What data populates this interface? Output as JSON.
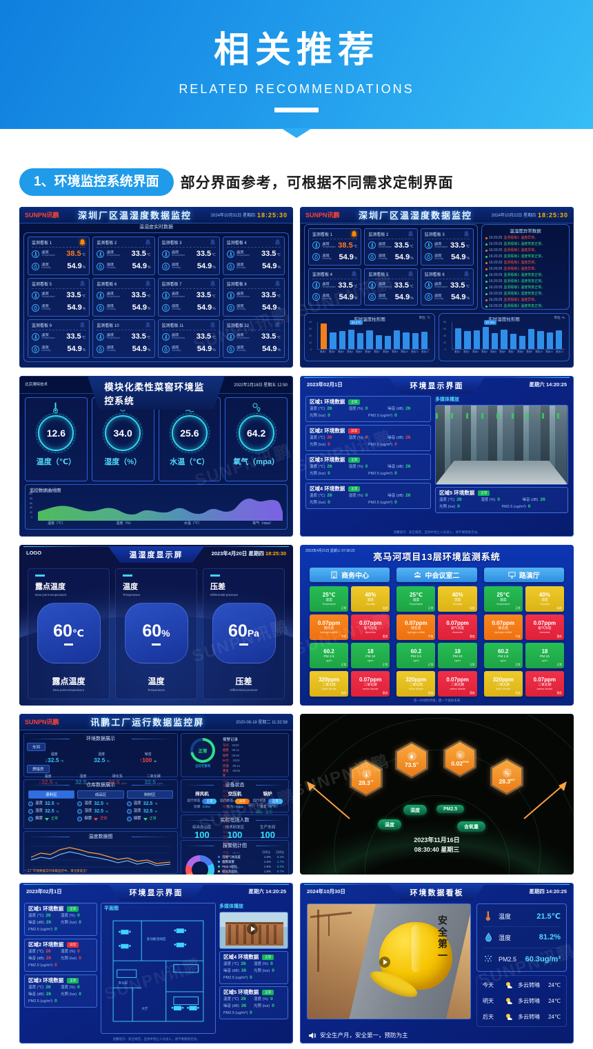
{
  "banner": {
    "title": "相关推荐",
    "subtitle": "RELATED RECOMMENDATIONS"
  },
  "section": {
    "label": "1、环境监控系统界面",
    "desc": "部分界面参考，可根据不同需求定制界面"
  },
  "watermark": "SUNPN讯鹏",
  "d1": {
    "logo": "SUNPN讯鹏",
    "title": "深圳厂区温湿度数据监控",
    "date": "2024年10月31日 星期四",
    "time": "18:25:30",
    "subtitle": "温湿度实时数据",
    "temp_label": "温度",
    "temp_en": "Temperature",
    "hum_label": "湿度",
    "hum_en": "Humidity",
    "temp_unit": "℃",
    "hum_unit": "%",
    "boards": [
      {
        "n": "监测看板 1",
        "t": "38.5",
        "h": "54.9",
        "cls": "alarm"
      },
      {
        "n": "监测看板 2",
        "t": "33.5",
        "h": "54.9"
      },
      {
        "n": "监测看板 3",
        "t": "33.5",
        "h": "54.9"
      },
      {
        "n": "监测看板 4",
        "t": "33.5",
        "h": "54.9"
      },
      {
        "n": "监测看板 5",
        "t": "33.5",
        "h": "54.9"
      },
      {
        "n": "监测看板 6",
        "t": "33.5",
        "h": "54.9"
      },
      {
        "n": "监测看板 7",
        "t": "33.5",
        "h": "54.9"
      },
      {
        "n": "监测看板 8",
        "t": "33.5",
        "h": "54.9"
      },
      {
        "n": "监测看板 9",
        "t": "33.5",
        "h": "54.9"
      },
      {
        "n": "监测看板 10",
        "t": "33.5",
        "h": "54.9"
      },
      {
        "n": "监测看板 11",
        "t": "33.5",
        "h": "54.9"
      },
      {
        "n": "监测看板 12",
        "t": "33.5",
        "h": "54.9"
      }
    ]
  },
  "d2": {
    "logo": "SUNPN讯鹏",
    "title": "深圳厂区温湿度数据监控",
    "date": "2024年10月22日 星期四",
    "time": "18:25:30",
    "subtitle": "温湿度实时数据",
    "alarm_title": "温湿度异常数据",
    "boards": [
      {
        "n": "监测看板 1",
        "t": "38.5",
        "h": "54.9",
        "cls": "alarm"
      },
      {
        "n": "监测看板 2",
        "t": "33.5",
        "h": "54.9"
      },
      {
        "n": "监测看板 3",
        "t": "33.5",
        "h": "54.9"
      },
      {
        "n": "监测看板 4",
        "t": "33.5",
        "h": "54.9"
      },
      {
        "n": "监测看板 5",
        "t": "33.5",
        "h": "54.9"
      },
      {
        "n": "监测看板 6",
        "t": "33.5",
        "h": "54.9"
      }
    ],
    "alarms": [
      {
        "time": "16:20:25",
        "src": "监测看板1",
        "msg": "温度异常。",
        "cls": "bad"
      },
      {
        "time": "16:20:25",
        "src": "监测看板1",
        "msg": "温度恢复正常。",
        "cls": "ok"
      },
      {
        "time": "16:20:25",
        "src": "监测看板1",
        "msg": "温度异常。",
        "cls": "bad"
      },
      {
        "time": "16:20:25",
        "src": "监测看板1",
        "msg": "湿度恢复正常。",
        "cls": "ok"
      },
      {
        "time": "16:20:25",
        "src": "监测看板1",
        "msg": "温度异常。",
        "cls": "bad"
      },
      {
        "time": "16:20:25",
        "src": "监测看板1",
        "msg": "温度异常。",
        "cls": "bad"
      },
      {
        "time": "16:20:25",
        "src": "监测看板1",
        "msg": "温度恢复正常。",
        "cls": "ok"
      },
      {
        "time": "16:20:25",
        "src": "监测看板1",
        "msg": "湿度恢复正常。",
        "cls": "ok"
      },
      {
        "time": "16:20:25",
        "src": "监测看板1",
        "msg": "温度恢复正常。",
        "cls": "ok"
      },
      {
        "time": "16:20:25",
        "src": "监测看板1",
        "msg": "湿度恢复正常。",
        "cls": "ok"
      },
      {
        "time": "16:20:25",
        "src": "监测看板1",
        "msg": "温度异常。",
        "cls": "bad"
      },
      {
        "time": "16:20:25",
        "src": "监测看板1",
        "msg": "温度恢复正常。",
        "cls": "ok"
      }
    ],
    "chart1": {
      "title": "实时温度柱形图",
      "unit": "单位: ℃",
      "tip": "34.2℃",
      "bars": [
        {
          "v": 95,
          "c": "orange"
        },
        62,
        66,
        72,
        60,
        68,
        52,
        48,
        70,
        62,
        58,
        64
      ]
    },
    "chart2": {
      "title": "实时湿度柱形图",
      "unit": "单位: %",
      "tip": "57.3%",
      "bars": [
        78,
        66,
        70,
        82,
        60,
        72,
        56,
        50,
        74,
        66,
        62,
        70
      ]
    },
    "yticks1": [
      {
        "t": "40"
      },
      {
        "t": "30"
      },
      {
        "t": "20"
      },
      {
        "t": "10"
      },
      {
        "t": "0"
      }
    ],
    "yticks2": [
      {
        "t": "80"
      },
      {
        "t": "60"
      },
      {
        "t": "40"
      },
      {
        "t": "20"
      },
      {
        "t": "0"
      }
    ],
    "xlabels": [
      {
        "t": "看板1"
      },
      {
        "t": "看板2"
      },
      {
        "t": "看板3"
      },
      {
        "t": "看板4"
      },
      {
        "t": "看板5"
      },
      {
        "t": "看板6"
      },
      {
        "t": "看板7"
      },
      {
        "t": "看板8"
      },
      {
        "t": "看板9"
      },
      {
        "t": "看板10"
      },
      {
        "t": "看板11"
      },
      {
        "t": "看板12"
      }
    ]
  },
  "d3": {
    "vendor": "北京溯特技术",
    "title": "模块化柔性菜窖环境监控系统",
    "date": "2022年2月18日 星期五 12:50",
    "chart_title": "监控数据曲线图",
    "cards": [
      {
        "v": "12.6",
        "label": "温度（℃）"
      },
      {
        "v": "34.0",
        "label": "湿度（%）"
      },
      {
        "v": "25.6",
        "label": "水温（℃）"
      },
      {
        "v": "64.2",
        "label": "氧气（mpa）"
      }
    ],
    "yticks": [
      {
        "t": "100"
      },
      {
        "t": "80"
      },
      {
        "t": "60"
      },
      {
        "t": "40"
      },
      {
        "t": "20"
      },
      {
        "t": "0"
      }
    ],
    "xlabels": [
      {
        "t": "温度（℃）"
      },
      {
        "t": "湿度（%）"
      },
      {
        "t": "水温（℃）"
      },
      {
        "t": "氧气（mpa）"
      }
    ]
  },
  "d4": {
    "title": "环境显示界面",
    "date": "2023年02月1日",
    "week": "星期六 14:20:25",
    "media_label": "多媒体播放",
    "m": {
      "t": "温度 (℃)",
      "h": "湿度 (%)",
      "n": "噪音 (dB)",
      "l": "光照 (lux)",
      "p": "PM2.5 (ug/m³)"
    },
    "v": {
      "t": "26",
      "h": "0",
      "n": "26",
      "l": "0",
      "p": "0"
    },
    "zones": [
      {
        "name": "区域1 环境数据",
        "badge": "正常",
        "cls": "ok"
      },
      {
        "name": "区域2 环境数据",
        "badge": "异常",
        "cls": "bad"
      },
      {
        "name": "区域3 环境数据",
        "badge": "正常",
        "cls": "ok"
      },
      {
        "name": "区域4 环境数据",
        "badge": "正常",
        "cls": "ok"
      }
    ],
    "z5": {
      "name": "区域5 环境数据",
      "badge": "正常"
    },
    "footer": "温馨提示：安全规范，监测中禁止人员进入，请不要随意走动。"
  },
  "d5": {
    "logo": "LOGO",
    "title": "温湿度显示屏",
    "date": "2023年4月20日 星期四",
    "time": "18:25:30",
    "cards": [
      {
        "label": "露点温度",
        "en": "Dew point temperature",
        "value": "60",
        "unit": "℃"
      },
      {
        "label": "温度",
        "en": "Temperature",
        "value": "60",
        "unit": "%"
      },
      {
        "label": "压差",
        "en": "Differential pressure",
        "value": "60",
        "unit": "Pa"
      }
    ]
  },
  "d6": {
    "datetime": "2022年4月21日 星期三 07:30:22",
    "title": "亮马河项目13层环境监测系统",
    "sections": [
      {
        "name": "商务中心"
      },
      {
        "name": "中会议室二"
      },
      {
        "name": "路演厅"
      }
    ],
    "tiles": [
      {
        "v": "25℃",
        "n": "温度",
        "e": "Temperature",
        "s": "正常",
        "c": "green"
      },
      {
        "v": "40%",
        "n": "湿度",
        "e": "Humidity",
        "s": "轻度",
        "c": "yellow"
      },
      {
        "v": "0.07ppm",
        "n": "硫化氢",
        "e": "hydrogen sulfide",
        "s": "中度",
        "c": "orange"
      },
      {
        "v": "0.07ppm",
        "n": "氨气浓度",
        "e": "Ammonia",
        "s": "重度",
        "c": "red"
      },
      {
        "v": "60.2",
        "n": "PM 2.5",
        "e": "ug/m³",
        "s": "正常",
        "c": "green"
      },
      {
        "v": "18",
        "n": "PM 10",
        "e": "ug/m³",
        "s": "正常",
        "c": "green"
      },
      {
        "v": "320ppm",
        "n": "二氧化硫",
        "e": "Sulfur dioxide",
        "s": "轻度",
        "c": "yellow"
      },
      {
        "v": "0.07ppm",
        "n": "二氧化碳",
        "e": "carbon dioxide",
        "s": "重度",
        "c": "red"
      }
    ],
    "footer": "还一片绿色环境，建一个美好未来"
  },
  "d7": {
    "logo": "SUNPN讯鹏",
    "title": "讯鹏工厂运行数据监控屏",
    "datetime": "2020-08-18 星期二 11:32:58",
    "sec_env": "环境数据展示",
    "sec_wh": "仓库数据展示",
    "sec_dev": "设备状态",
    "sec_people": "实时在场人数",
    "sec_tchart": "温度数据图",
    "sec_achart": "报警统计图",
    "env": {
      "room1": "车间",
      "room2": "焊接房",
      "r1": [
        {
          "l": "温度",
          "v": "32.5",
          "u": "℃",
          "c": "cy",
          "a": "↓"
        },
        {
          "l": "湿度",
          "v": "32.5",
          "u": "%",
          "c": "cy",
          "a": ""
        },
        {
          "l": "噪音",
          "v": "100",
          "u": "db",
          "c": "rd",
          "a": "↑"
        }
      ],
      "r2": [
        {
          "l": "温度",
          "v": "32.5",
          "u": "℃",
          "c": "rd",
          "a": "↓"
        },
        {
          "l": "湿度",
          "v": "32.5",
          "u": "%",
          "c": "cy",
          "a": ""
        },
        {
          "l": "硫化氢",
          "v": "32.5",
          "u": "ppm",
          "c": "rd",
          "a": ""
        },
        {
          "l": "二氧化碳",
          "v": "32.5",
          "u": "ppm",
          "c": "cy",
          "a": ""
        }
      ]
    },
    "alarm": {
      "title": "报警记录",
      "gauge": "正常",
      "gauge_sub": "当前无警情",
      "info": "消防门3号（电梯区）",
      "state": "详情 · 正常",
      "records": [
        {
          "n": "车间烟雾报警",
          "t": "2020-08-11 09:50"
        },
        {
          "n": "6#仓库烟雾报警",
          "t": "2020-08-11 09:50"
        },
        {
          "n": "车间温度异常",
          "t": "2020-08-11 09:50"
        },
        {
          "n": "车间烟雾报警",
          "t": "2020-08-11 09:50"
        },
        {
          "n": "6#仓库烟雾报警",
          "t": "2020-08-11 09:50"
        },
        {
          "n": "车间湿度异常",
          "t": "2020-08-11 09:50"
        },
        {
          "n": "6#仓库烟雾报警",
          "t": "2020-08-11 09:50"
        },
        {
          "n": "车间烟雾报警",
          "t": "2020-08-11 09:50"
        }
      ]
    },
    "wh": {
      "t": "温度",
      "h": "湿度",
      "s": "烟雾",
      "tv": "32.5",
      "tu": "℃",
      "hv": "32.5",
      "hu": "%",
      "zones": [
        {
          "tab": "原料区",
          "state": "正常",
          "cls": "ok"
        },
        {
          "tab": "成品区",
          "state": "异常",
          "cls": "bad"
        },
        {
          "tab": "制材区",
          "state": "正常",
          "cls": "ok"
        }
      ]
    },
    "state_label": "运行状态",
    "dev": [
      {
        "n": "排风机",
        "k": "功率",
        "v": "22kw",
        "state": "正常",
        "cls": "ok"
      },
      {
        "n": "空压机",
        "k": "压力",
        "v": "10pa",
        "state": "异常",
        "cls": "bad"
      },
      {
        "n": "锅炉",
        "k": "温度",
        "v": "36℃",
        "state": "正常",
        "cls": "ok"
      }
    ],
    "people": [
      {
        "n": "综合办公区",
        "v": "100"
      },
      {
        "n": "技术研发区",
        "v": "100"
      },
      {
        "n": "生产车间",
        "v": "100"
      }
    ],
    "legend_h": {
      "a": "月环比",
      "b": "日环比"
    },
    "legend": [
      {
        "n": "可燃气体浓度",
        "a": "1.8%",
        "b": "0.2%",
        "c": "lgc1"
      },
      {
        "n": "烟雾报警",
        "a": "1.5%",
        "b": "1.7%",
        "c": "lgc2"
      },
      {
        "n": "PM2.5超标",
        "a": "1.8%",
        "b": "0.2%",
        "c": "lgc3"
      },
      {
        "n": "硫化氢超标",
        "a": "1.8%",
        "b": "0.7%",
        "c": "lgc4"
      },
      {
        "n": "噪音超标",
        "a": "1.8%",
        "b": "2.0%",
        "c": "lgc5"
      },
      {
        "n": "温度异常",
        "a": "1.8%",
        "b": "0.5%",
        "c": "lgc6"
      },
      {
        "n": "湿度异常",
        "a": "1.8%",
        "b": "1.0%",
        "c": "lgc7"
      }
    ],
    "ticker": "* 工厂环境数据实时采集监控中，请注意安全！"
  },
  "d8": {
    "date": "2023年11月16日",
    "time": "08:30:40 星期三",
    "hexes": [
      {
        "v": "28.3",
        "u": "℃"
      },
      {
        "v": "73.5",
        "u": "%"
      },
      {
        "v": "0.02",
        "u": "PPM"
      },
      {
        "v": "28.3",
        "u": "MG"
      }
    ],
    "pills": [
      "温度",
      "湿度",
      "PM2.5",
      "含氧量"
    ]
  },
  "d9": {
    "title": "环境显示界面",
    "date": "2023年02月1日",
    "week": "星期六 14:20:25",
    "plan_label": "平面图",
    "media_label": "多媒体播放",
    "m": {
      "t": "温度 (℃)",
      "h": "湿度 (%)",
      "n": "噪音 (dB)",
      "l": "光照 (lux)",
      "p": "PM2.5 (ug/m³)"
    },
    "v": {
      "t": "26",
      "h": "0",
      "n": "26",
      "l": "0",
      "p": "0"
    },
    "zl": [
      {
        "name": "区域1 环境数据",
        "badge": "正常",
        "cls": "ok"
      },
      {
        "name": "区域2 环境数据",
        "badge": "异常",
        "cls": "bad"
      },
      {
        "name": "区域3 环境数据",
        "badge": "正常",
        "cls": "ok"
      }
    ],
    "zr": [
      {
        "name": "区域4 环境数据",
        "badge": "正常",
        "cls": "ok"
      },
      {
        "name": "区域5 环境数据",
        "badge": "正常",
        "cls": "ok"
      }
    ],
    "rooms": [
      {
        "t": "多功能活动区"
      },
      {
        "t": "办公区"
      },
      {
        "t": "大厅"
      }
    ],
    "footer": "温馨提示：安全规范，监测中禁止人员进入，请不要随意走动。"
  },
  "d10": {
    "title": "环境数据看板",
    "date": "2024年10月30日",
    "week": "星期四 14:20:25",
    "helmet": "安全第一",
    "metrics": [
      {
        "n": "温度",
        "v": "21.5℃"
      },
      {
        "n": "湿度",
        "v": "81.2%"
      },
      {
        "n": "PM2.5",
        "v": "60.3ug/m³"
      }
    ],
    "weather": [
      {
        "d": "今天",
        "w": "多云转晴",
        "t": "24℃"
      },
      {
        "d": "明天",
        "w": "多云转晴",
        "t": "24℃"
      },
      {
        "d": "后天",
        "w": "多云转晴",
        "t": "24℃"
      }
    ],
    "footer": "安全生产月，安全第一，预防为主"
  }
}
